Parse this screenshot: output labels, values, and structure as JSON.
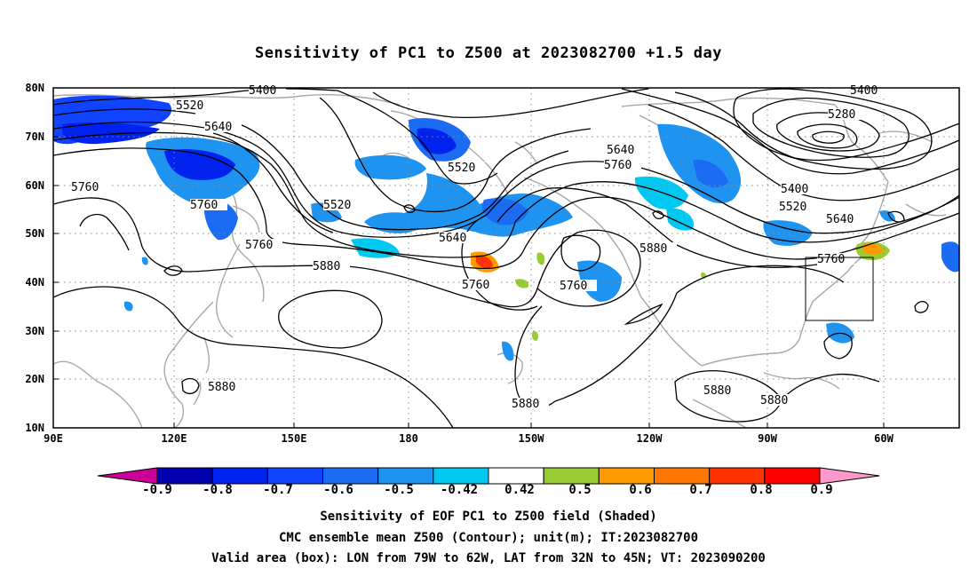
{
  "title": "Sensitivity of PC1 to Z500 at 2023082700 +1.5 day",
  "lat_labels": [
    "80N",
    "70N",
    "60N",
    "50N",
    "40N",
    "30N",
    "20N",
    "10N"
  ],
  "lon_labels": [
    "90E",
    "120E",
    "150E",
    "180",
    "150W",
    "120W",
    "90W",
    "60W"
  ],
  "contour_labels": [
    "5400",
    "5520",
    "5640",
    "5760",
    "5880",
    "5280"
  ],
  "colorbar": {
    "labels": [
      "-0.9",
      "-0.8",
      "-0.7",
      "-0.6",
      "-0.5",
      "-0.42",
      "0.42",
      "0.5",
      "0.6",
      "0.7",
      "0.8",
      "0.9"
    ],
    "colors": [
      "#cc0099",
      "#0000b0",
      "#0022ee",
      "#1144ff",
      "#1b6cf2",
      "#1e94f0",
      "#00c8f0",
      "#ffffff",
      "#99cc33",
      "#ff9900",
      "#ff7700",
      "#ff3300",
      "#ff0000",
      "#ff99cc"
    ]
  },
  "captions": {
    "line1": "Sensitivity of EOF PC1 to Z500 field (Shaded)",
    "line2": "CMC ensemble mean Z500 (Contour); unit(m); IT:2023082700",
    "line3": "Valid area (box): LON from 79W to 62W, LAT from 32N to 45N; VT: 2023090200"
  }
}
